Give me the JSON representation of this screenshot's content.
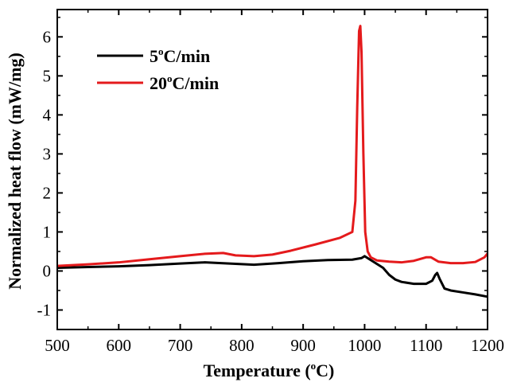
{
  "chart_data": {
    "type": "line",
    "title": "",
    "xlabel_main": "Temperature (",
    "xlabel_sup": "o",
    "xlabel_tail": "C)",
    "ylabel": "Normalized heat flow (mW/mg)",
    "xlim": [
      500,
      1200
    ],
    "ylim": [
      -1.5,
      6.7
    ],
    "xticks": [
      500,
      600,
      700,
      800,
      900,
      1000,
      1100,
      1200
    ],
    "yticks": [
      -1,
      0,
      1,
      2,
      3,
      4,
      5,
      6
    ],
    "legend_position": "top-left",
    "series": [
      {
        "name": "5oC/min",
        "label_main": "5",
        "label_sup": "o",
        "label_tail": "C/min",
        "color": "#000000",
        "x": [
          500,
          550,
          600,
          650,
          700,
          740,
          780,
          820,
          860,
          900,
          940,
          980,
          995,
          1000,
          1010,
          1020,
          1030,
          1040,
          1050,
          1060,
          1080,
          1100,
          1110,
          1115,
          1118,
          1122,
          1130,
          1140,
          1160,
          1180,
          1200
        ],
        "y": [
          0.08,
          0.1,
          0.12,
          0.15,
          0.19,
          0.22,
          0.19,
          0.16,
          0.2,
          0.25,
          0.28,
          0.29,
          0.33,
          0.38,
          0.28,
          0.18,
          0.08,
          -0.1,
          -0.22,
          -0.28,
          -0.33,
          -0.33,
          -0.25,
          -0.1,
          -0.05,
          -0.2,
          -0.45,
          -0.5,
          -0.55,
          -0.6,
          -0.66
        ]
      },
      {
        "name": "20oC/min",
        "label_main": "20",
        "label_sup": "o",
        "label_tail": "C/min",
        "color": "#e41a1c",
        "x": [
          500,
          550,
          600,
          650,
          700,
          740,
          770,
          790,
          820,
          850,
          880,
          920,
          960,
          980,
          985,
          988,
          991,
          993,
          995,
          998,
          1001,
          1005,
          1010,
          1020,
          1040,
          1060,
          1080,
          1100,
          1108,
          1120,
          1140,
          1160,
          1180,
          1195,
          1200
        ],
        "y": [
          0.13,
          0.17,
          0.22,
          0.3,
          0.38,
          0.44,
          0.46,
          0.4,
          0.38,
          0.42,
          0.52,
          0.68,
          0.85,
          1.0,
          1.8,
          4.2,
          6.15,
          6.28,
          5.6,
          3.0,
          1.0,
          0.5,
          0.35,
          0.27,
          0.24,
          0.22,
          0.26,
          0.35,
          0.35,
          0.24,
          0.2,
          0.2,
          0.23,
          0.35,
          0.45
        ]
      }
    ]
  }
}
